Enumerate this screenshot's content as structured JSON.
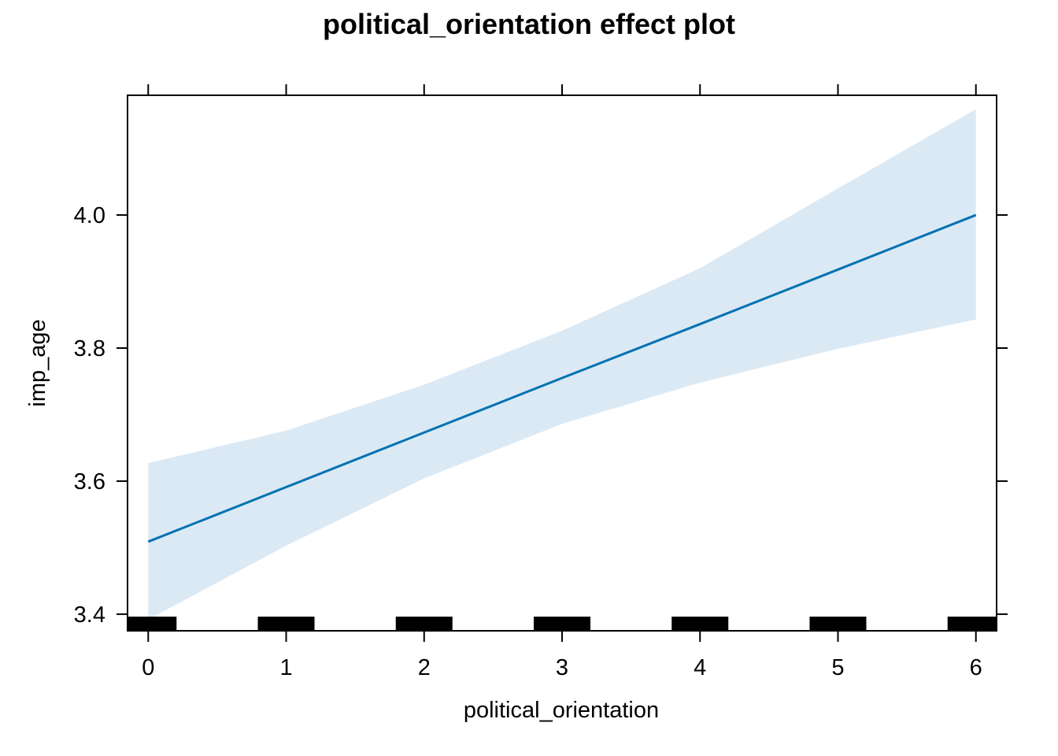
{
  "chart_data": {
    "type": "line",
    "title": "political_orientation effect plot",
    "xlabel": "political_orientation",
    "ylabel": "imp_age",
    "xlim": [
      -0.15,
      6.15
    ],
    "ylim": [
      3.375,
      4.18
    ],
    "x_ticks": [
      0,
      1,
      2,
      3,
      4,
      5,
      6
    ],
    "x_tick_labels": [
      "0",
      "1",
      "2",
      "3",
      "4",
      "5",
      "6"
    ],
    "y_ticks": [
      3.4,
      3.6,
      3.8,
      4.0
    ],
    "y_tick_labels": [
      "3.4",
      "3.6",
      "3.8",
      "4.0"
    ],
    "grid": false,
    "series": [
      {
        "x": [
          0,
          1,
          2,
          3,
          4,
          5,
          6
        ],
        "values": [
          3.509,
          3.591,
          3.673,
          3.755,
          3.836,
          3.918,
          4.0
        ],
        "lower": [
          3.392,
          3.503,
          3.604,
          3.686,
          3.748,
          3.799,
          3.843
        ],
        "upper": [
          3.627,
          3.676,
          3.745,
          3.826,
          3.92,
          4.04,
          4.159
        ]
      }
    ],
    "rug": [
      0,
      1,
      2,
      3,
      4,
      5,
      6
    ],
    "colors": {
      "line": "#0072b2",
      "band": "#dbe9f5",
      "rug": "#000000",
      "axis": "#000000"
    }
  }
}
